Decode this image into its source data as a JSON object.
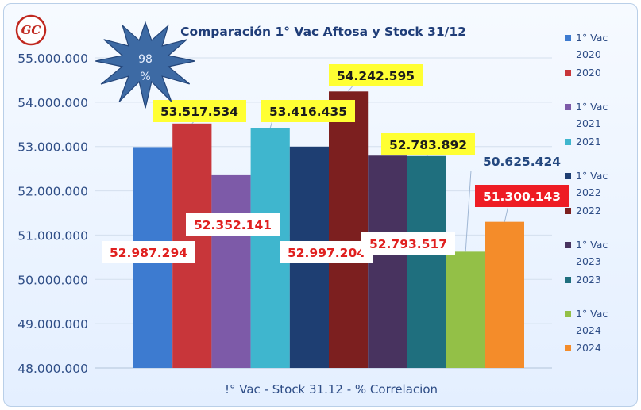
{
  "logo": {
    "text": "GC",
    "color": "#c0281f"
  },
  "badge": {
    "value": "98",
    "unit": "%"
  },
  "chart_data": {
    "type": "bar",
    "title": "Comparación 1° Vac Aftosa y Stock 31/12",
    "xlabel": "!° Vac - Stock 31.12 - % Correlacion",
    "ylabel": "",
    "ylim": [
      48000000,
      55000000
    ],
    "ytick_labels": [
      "48.000.000",
      "49.000.000",
      "50.000.000",
      "51.000.000",
      "52.000.000",
      "53.000.000",
      "54.000.000",
      "55.000.000"
    ],
    "ytick_values": [
      48000000,
      49000000,
      50000000,
      51000000,
      52000000,
      53000000,
      54000000,
      55000000
    ],
    "grid": true,
    "legend_position": "right",
    "series": [
      {
        "name": "1° Vac 2020",
        "value": 52987294,
        "label": "52.987.294",
        "color": "#3d7bd0",
        "label_style": "white-red-text",
        "label_pos": "below"
      },
      {
        "name": "2020",
        "value": 53517534,
        "label": "53.517.534",
        "color": "#c8363a",
        "label_style": "yellow",
        "label_pos": "above"
      },
      {
        "name": "1° Vac 2021",
        "value": 52352141,
        "label": "52.352.141",
        "color": "#7d5aa8",
        "label_style": "white-red-text",
        "label_pos": "below"
      },
      {
        "name": "2021",
        "value": 53416435,
        "label": "53.416.435",
        "color": "#3fb6ce",
        "label_style": "yellow",
        "label_pos": "above"
      },
      {
        "name": "1° Vac 2022",
        "value": 52997204,
        "label": "52.997.204",
        "color": "#1e3e72",
        "label_style": "white-red-text",
        "label_pos": "below"
      },
      {
        "name": "2022",
        "value": 54242595,
        "label": "54.242.595",
        "color": "#7c1f1f",
        "label_style": "yellow",
        "label_pos": "above"
      },
      {
        "name": "1° Vac 2023",
        "value": 52793517,
        "label": "52.793.517",
        "color": "#48335f",
        "label_style": "white-red-text",
        "label_pos": "below"
      },
      {
        "name": "2023",
        "value": 52783892,
        "label": "52.783.892",
        "color": "#1f6f7e",
        "label_style": "yellow",
        "label_pos": "above"
      },
      {
        "name": "1° Vac 2024",
        "value": 50625424,
        "label": "50.625.424",
        "color": "#93c047",
        "label_style": "plain-blue",
        "label_pos": "above"
      },
      {
        "name": "2024",
        "value": 51300143,
        "label": "51.300.143",
        "color": "#f48c2a",
        "label_style": "red",
        "label_pos": "above"
      }
    ],
    "legend": [
      {
        "line1": "1° Vac",
        "line2": "2020",
        "color": "#3d7bd0"
      },
      {
        "line1": "2020",
        "line2": "",
        "color": "#c8363a"
      },
      {
        "line1": "1° Vac",
        "line2": "2021",
        "color": "#7d5aa8"
      },
      {
        "line1": "2021",
        "line2": "",
        "color": "#3fb6ce"
      },
      {
        "line1": "1° Vac",
        "line2": "2022",
        "color": "#1e3e72"
      },
      {
        "line1": "2022",
        "line2": "",
        "color": "#7c1f1f"
      },
      {
        "line1": "1° Vac",
        "line2": "2023",
        "color": "#48335f"
      },
      {
        "line1": "2023",
        "line2": "",
        "color": "#1f6f7e"
      },
      {
        "line1": "1° Vac",
        "line2": "2024",
        "color": "#93c047"
      },
      {
        "line1": "2024",
        "line2": "",
        "color": "#f48c2a"
      }
    ]
  }
}
